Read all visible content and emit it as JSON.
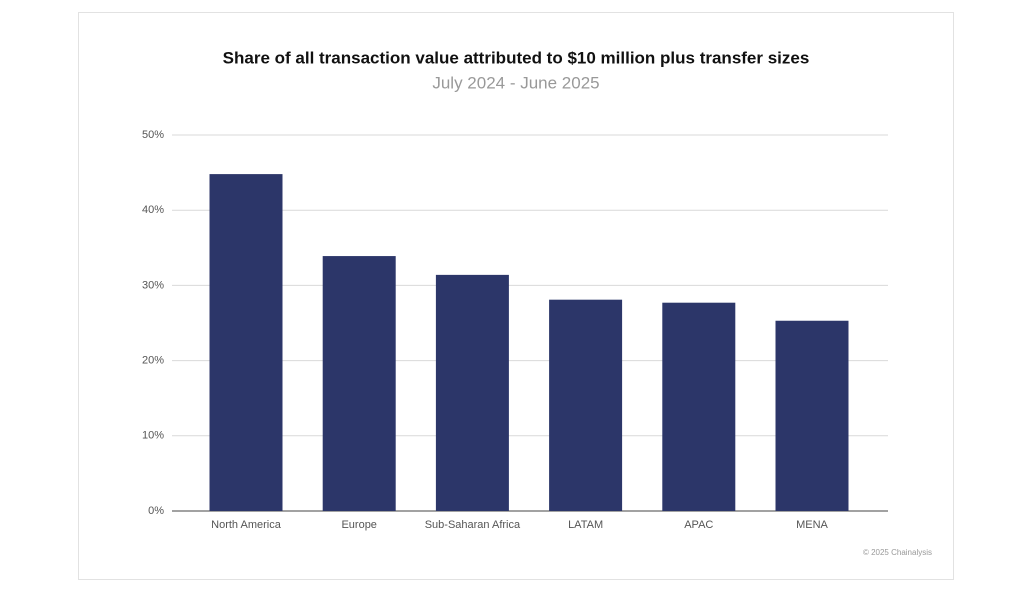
{
  "chart_data": {
    "type": "bar",
    "title": "Share of all transaction value attributed to $10 million plus transfer sizes",
    "subtitle": "July 2024 - June 2025",
    "categories": [
      "North America",
      "Europe",
      "Sub-Saharan Africa",
      "LATAM",
      "APAC",
      "MENA"
    ],
    "values": [
      44.8,
      33.9,
      31.4,
      28.1,
      27.7,
      25.3
    ],
    "color": "#2c3669",
    "ylim": [
      0,
      50
    ],
    "yticks": [
      {
        "value": 0,
        "label": "0%"
      },
      {
        "value": 10,
        "label": "10%"
      },
      {
        "value": 20,
        "label": "20%"
      },
      {
        "value": 30,
        "label": "30%"
      },
      {
        "value": 40,
        "label": "40%"
      },
      {
        "value": 50,
        "label": "50%"
      }
    ],
    "grid": true,
    "credit": "© 2025 Chainalysis"
  }
}
